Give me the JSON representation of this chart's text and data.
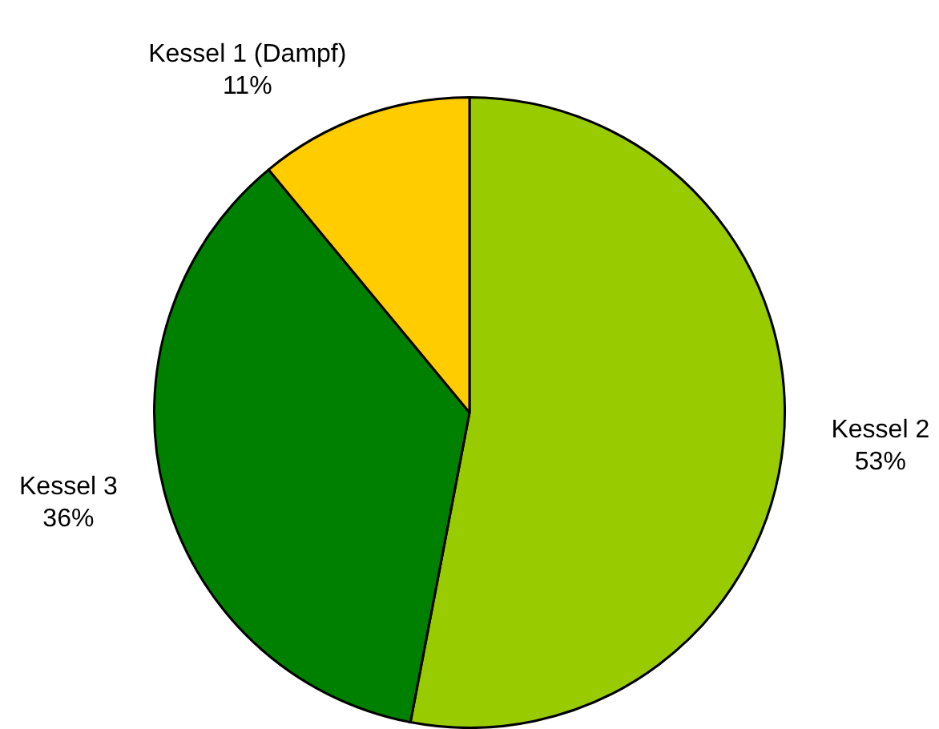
{
  "chart_data": {
    "type": "pie",
    "categories": [
      "Kessel 2",
      "Kessel 3",
      "Kessel 1 (Dampf)"
    ],
    "values": [
      53,
      36,
      11
    ],
    "value_labels": [
      "53%",
      "36%",
      "11%"
    ],
    "colors": [
      "#99cc00",
      "#008000",
      "#ffcc00"
    ],
    "legend": false
  }
}
